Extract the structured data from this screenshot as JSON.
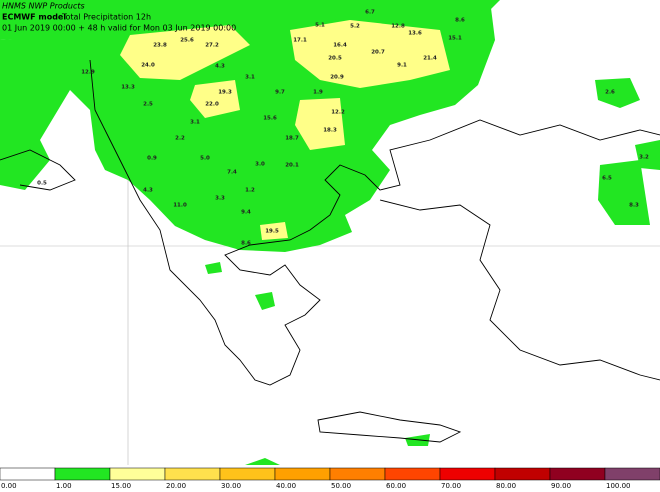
{
  "header": {
    "line1": "HNMS NWP Products",
    "model": "ECMWF model",
    "field": "Total Precipitation 12h",
    "line3": "01 Jun 2019 00:00 + 48 h valid for Mon 03 Jun 2019 00:00"
  },
  "map_labels": [
    "6.7",
    "8.6",
    "5.1",
    "5.2",
    "12.8",
    "13.6",
    "15.1",
    "17.1",
    "16.4",
    "20.7",
    "21.4",
    "20.5",
    "9.1",
    "20.9",
    "23.8",
    "25.6",
    "27.2",
    "24.0",
    "12.9",
    "13.3",
    "4.3",
    "3.1",
    "2.5",
    "19.3",
    "22.0",
    "9.7",
    "1.9",
    "12.2",
    "15.6",
    "18.3",
    "18.7",
    "3.1",
    "2.2",
    "5.0",
    "0.9",
    "7.4",
    "3.0",
    "20.1",
    "4.3",
    "11.0",
    "9.4",
    "1.2",
    "3.3",
    "19.5",
    "8.6",
    "2.6",
    "3.2",
    "6.5",
    "8.3",
    "0.5"
  ],
  "colorbar": {
    "labels": [
      "0.00",
      "1.00",
      "15.00",
      "20.00",
      "30.00",
      "40.00",
      "50.00",
      "60.00",
      "70.00",
      "80.00",
      "90.00",
      "100.00"
    ],
    "colors": [
      "#ffffff",
      "#22e622",
      "#ffff99",
      "#ffe14d",
      "#ffc21a",
      "#ffa000",
      "#ff7f00",
      "#ff4500",
      "#ee0000",
      "#c00000",
      "#900020",
      "#80406a"
    ]
  }
}
